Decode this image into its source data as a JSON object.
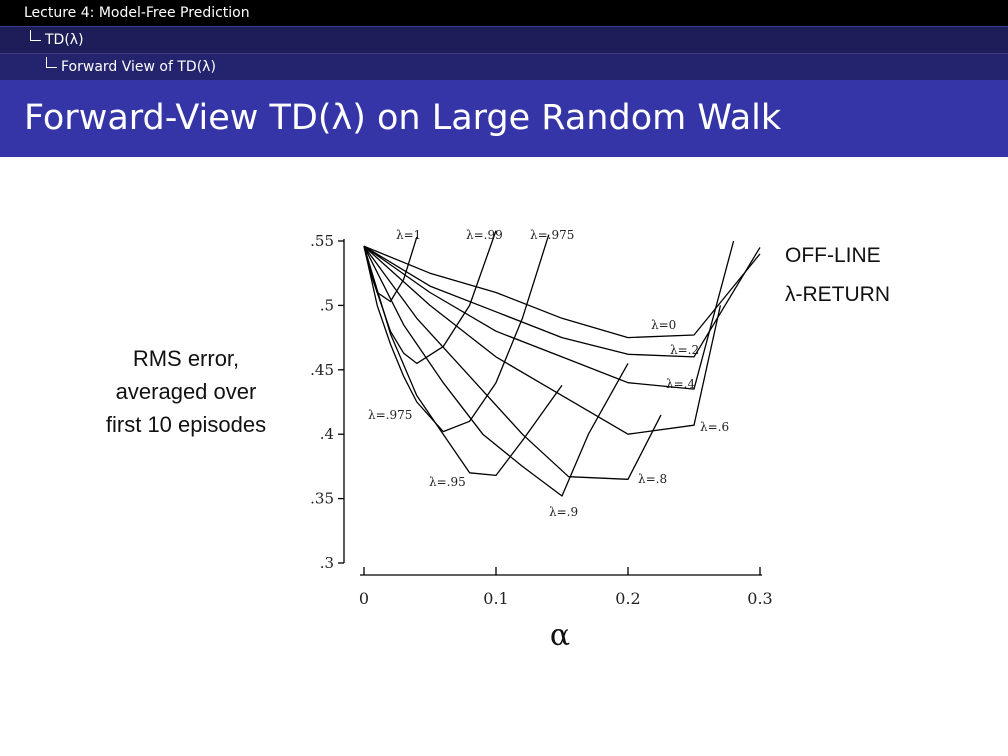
{
  "breadcrumb": {
    "lecture": "Lecture 4: Model-Free Prediction",
    "section": "TD(λ)",
    "subsection": "Forward View of TD(λ)"
  },
  "slide": {
    "title": "Forward-View TD(λ) on Large Random Walk"
  },
  "colors": {
    "header_black": "#000000",
    "header_navy": "#1d1d5a",
    "title_blue": "#3535a8",
    "line": "#000000"
  },
  "chart_data": {
    "type": "line",
    "title": "",
    "ylabel_lines": [
      "RMS error,",
      "averaged over",
      "first 10 episodes"
    ],
    "xlabel": "α",
    "annotation_lines": [
      "OFF-LINE",
      "λ-RETURN"
    ],
    "xlim": [
      0,
      0.3
    ],
    "ylim": [
      0.3,
      0.55
    ],
    "xticks": [
      0,
      0.1,
      0.2,
      0.3
    ],
    "xtick_labels": [
      "0",
      "0.1",
      "0.2",
      "0.3"
    ],
    "yticks": [
      0.3,
      0.35,
      0.4,
      0.45,
      0.5,
      0.55
    ],
    "ytick_labels": [
      ".3",
      ".35",
      ".4",
      ".45",
      ".5",
      ".55"
    ],
    "series": [
      {
        "name": "λ=1",
        "label": "λ=1",
        "x": [
          0,
          0.005,
          0.01,
          0.02,
          0.03,
          0.04
        ],
        "y": [
          0.546,
          0.525,
          0.51,
          0.503,
          0.52,
          0.553
        ]
      },
      {
        "name": "λ=.99",
        "label": "λ=.99",
        "x": [
          0,
          0.01,
          0.02,
          0.03,
          0.04,
          0.06,
          0.08,
          0.1
        ],
        "y": [
          0.546,
          0.51,
          0.48,
          0.463,
          0.455,
          0.468,
          0.5,
          0.558
        ]
      },
      {
        "name": "λ=.975",
        "label": "λ=.975",
        "x": [
          0,
          0.01,
          0.02,
          0.03,
          0.04,
          0.06,
          0.08,
          0.1,
          0.12,
          0.14
        ],
        "y": [
          0.546,
          0.5,
          0.47,
          0.445,
          0.425,
          0.402,
          0.41,
          0.44,
          0.49,
          0.555
        ]
      },
      {
        "name": "λ=.95",
        "label": "λ=.95",
        "x": [
          0,
          0.02,
          0.04,
          0.06,
          0.08,
          0.1,
          0.12,
          0.15
        ],
        "y": [
          0.546,
          0.478,
          0.43,
          0.4,
          0.37,
          0.368,
          0.395,
          0.438
        ]
      },
      {
        "name": "λ=.9",
        "label": "λ=.9",
        "x": [
          0,
          0.03,
          0.06,
          0.09,
          0.12,
          0.15,
          0.17,
          0.2
        ],
        "y": [
          0.546,
          0.485,
          0.44,
          0.4,
          0.375,
          0.352,
          0.4,
          0.455
        ]
      },
      {
        "name": "λ=.8",
        "label": "λ=.8",
        "x": [
          0,
          0.04,
          0.08,
          0.12,
          0.155,
          0.2,
          0.225
        ],
        "y": [
          0.546,
          0.49,
          0.445,
          0.4,
          0.367,
          0.365,
          0.415
        ]
      },
      {
        "name": "λ=.6",
        "label": "λ=.6",
        "x": [
          0,
          0.05,
          0.1,
          0.15,
          0.2,
          0.25,
          0.27
        ],
        "y": [
          0.546,
          0.5,
          0.46,
          0.43,
          0.4,
          0.407,
          0.5
        ]
      },
      {
        "name": "λ=.4",
        "label": "λ=.4",
        "x": [
          0,
          0.05,
          0.1,
          0.15,
          0.2,
          0.25,
          0.28
        ],
        "y": [
          0.546,
          0.51,
          0.48,
          0.46,
          0.44,
          0.435,
          0.55
        ]
      },
      {
        "name": "λ=.2",
        "label": "λ=.2",
        "x": [
          0,
          0.05,
          0.1,
          0.15,
          0.2,
          0.25,
          0.3
        ],
        "y": [
          0.546,
          0.515,
          0.495,
          0.475,
          0.462,
          0.46,
          0.545
        ]
      },
      {
        "name": "λ=0",
        "label": "λ=0",
        "x": [
          0,
          0.05,
          0.1,
          0.15,
          0.2,
          0.25,
          0.3
        ],
        "y": [
          0.546,
          0.525,
          0.51,
          0.49,
          0.475,
          0.477,
          0.54
        ]
      }
    ]
  }
}
